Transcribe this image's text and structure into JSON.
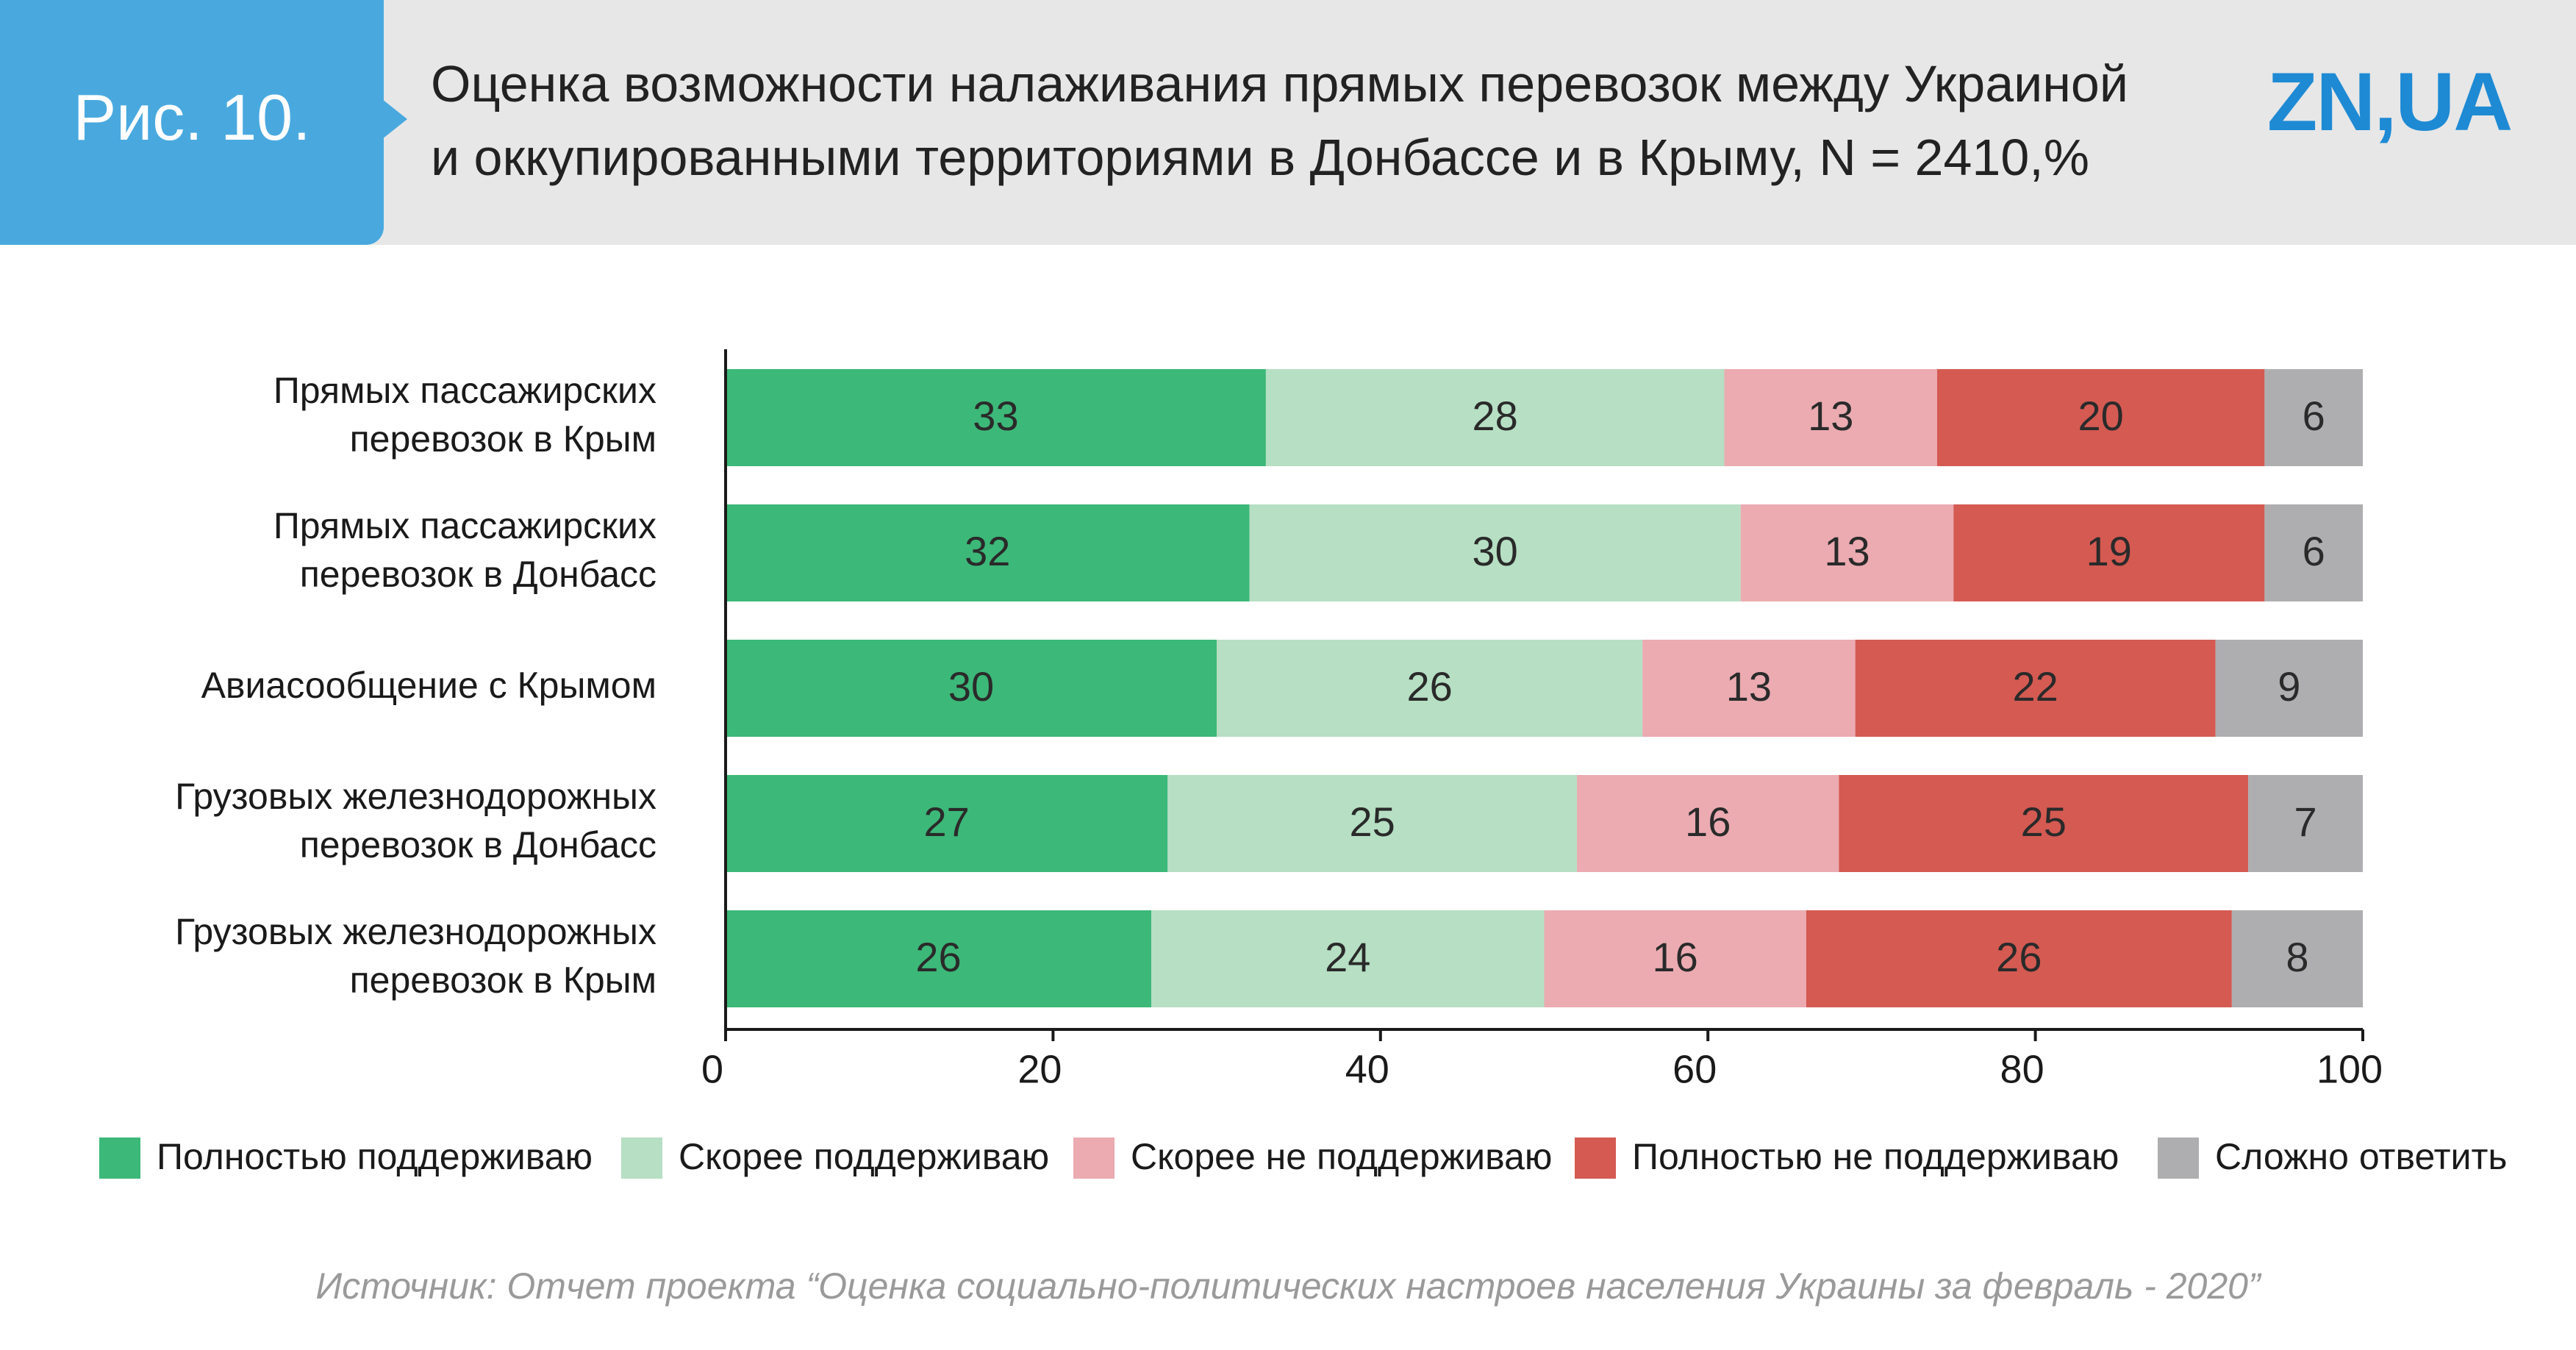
{
  "header": {
    "figure_label": "Рис. 10.",
    "title_line1": "Оценка возможности налаживания прямых перевозок между Украиной",
    "title_line2": "и оккупированными территориями в Донбассе и в Крыму, N = 2410,%",
    "logo_text": "ZN,UA"
  },
  "chart_data": {
    "type": "bar",
    "orientation": "horizontal",
    "stacked": true,
    "categories": [
      [
        "Прямых пассажирских",
        "перевозок в Крым"
      ],
      [
        "Прямых пассажирских",
        "перевозок в Донбасс"
      ],
      [
        "Авиасообщение с Крымом"
      ],
      [
        "Грузовых железнодорожных",
        "перевозок в Донбасс"
      ],
      [
        "Грузовых железнодорожных",
        "перевозок в Крым"
      ]
    ],
    "series": [
      {
        "name": "Полностью поддерживаю",
        "color": "#3cb878",
        "values": [
          33,
          32,
          30,
          27,
          26
        ]
      },
      {
        "name": "Скорее поддерживаю",
        "color": "#b6dfc3",
        "values": [
          28,
          30,
          26,
          25,
          24
        ]
      },
      {
        "name": "Скорее не поддерживаю",
        "color": "#ebabb1",
        "values": [
          13,
          13,
          13,
          16,
          16
        ]
      },
      {
        "name": "Полностью не поддерживаю",
        "color": "#d45a52",
        "values": [
          20,
          19,
          22,
          25,
          26
        ]
      },
      {
        "name": "Сложно ответить",
        "color": "#aeaeb0",
        "values": [
          6,
          6,
          9,
          7,
          8
        ]
      }
    ],
    "xlim": [
      0,
      100
    ],
    "xticks": [
      0,
      20,
      40,
      60,
      80,
      100
    ],
    "grid": false,
    "legend_position": "bottom"
  },
  "footer": {
    "source": "Источник: Отчет проекта “Оценка социально-политических настроев населения Украины за февраль - 2020”"
  }
}
